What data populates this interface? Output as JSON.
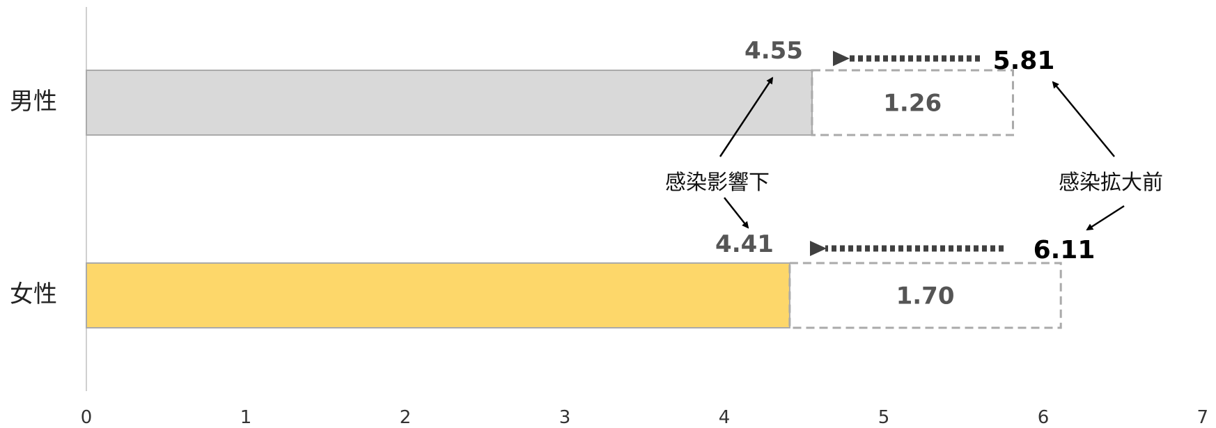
{
  "chart_data": {
    "type": "bar",
    "orientation": "horizontal",
    "categories": [
      "男性",
      "女性"
    ],
    "series": [
      {
        "values": [
          4.55,
          4.41
        ]
      },
      {
        "values": [
          5.81,
          6.11
        ]
      }
    ],
    "differences": [
      1.26,
      1.7
    ],
    "value_labels": {
      "after": [
        "4.55",
        "4.41"
      ],
      "before": [
        "5.81",
        "6.11"
      ],
      "diff": [
        "1.26",
        "1.70"
      ]
    },
    "annotations": [
      "感染影響下",
      "感染拡大前"
    ],
    "xlim": [
      0,
      7
    ],
    "xticks": [
      "0",
      "1",
      "2",
      "3",
      "4",
      "5",
      "6",
      "7"
    ],
    "grid": false,
    "colors": {
      "male_fill": "#d9d9d9",
      "female_fill": "#fdd76a",
      "bar_border": "#aaaaaa",
      "diff_border": "#aaaaaa",
      "arrow_dotted": "#404040",
      "annotation_arrow": "#000000"
    }
  }
}
